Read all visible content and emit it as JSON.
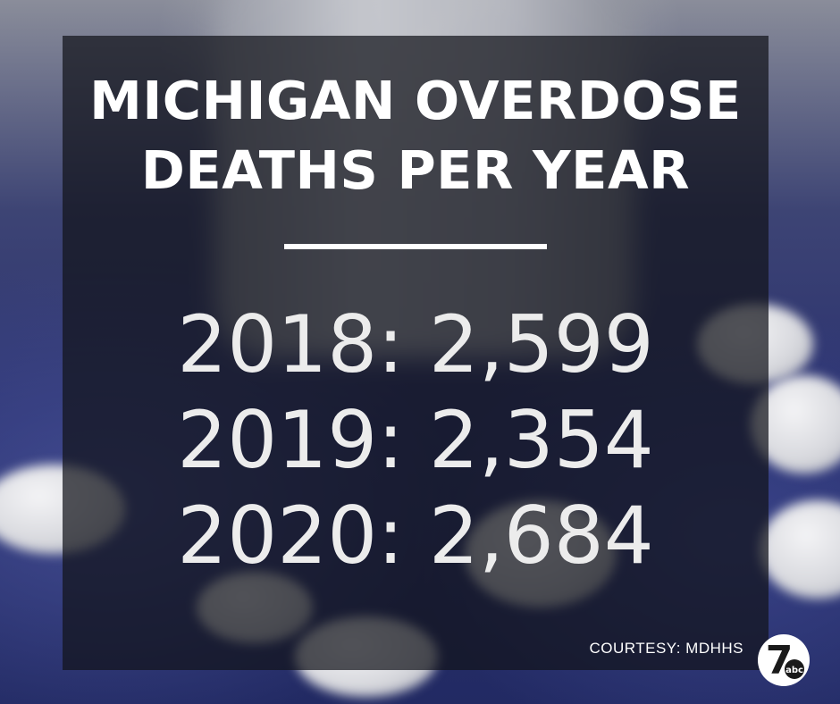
{
  "title": {
    "line1": "MICHIGAN OVERDOSE",
    "line2": "DEATHS PER YEAR"
  },
  "stats": [
    {
      "text": "2018: 2,599"
    },
    {
      "text": "2019: 2,354"
    },
    {
      "text": "2020: 2,684"
    }
  ],
  "courtesy": "COURTESY: MDHHS",
  "logo": {
    "icon": "channel-7-abc-logo",
    "number": "7",
    "network": "abc"
  },
  "colors": {
    "overlay": "#12141a",
    "text": "#ffffff",
    "background_blue": "#2a3170"
  }
}
